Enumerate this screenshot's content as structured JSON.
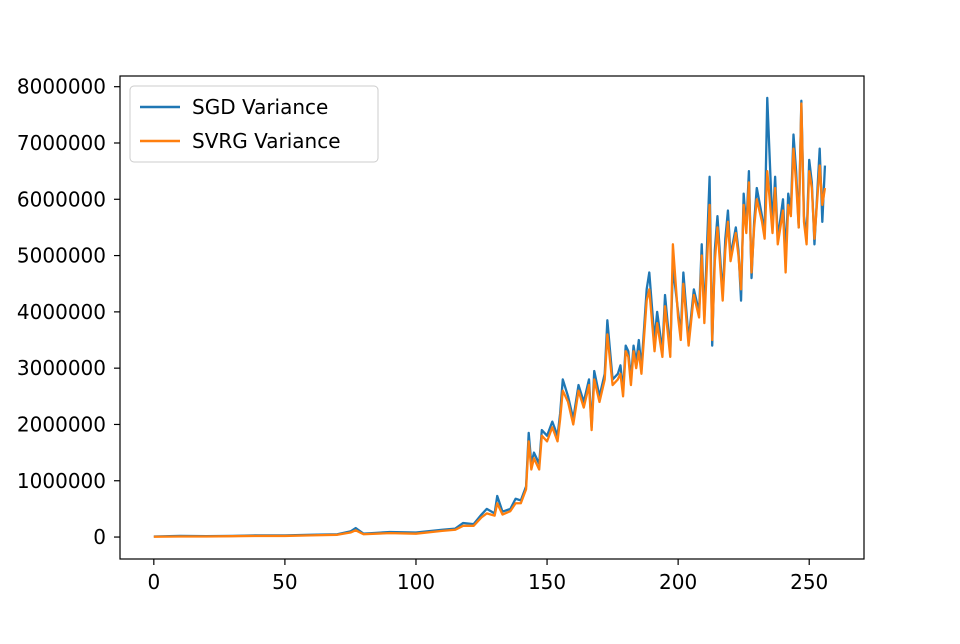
{
  "chart_data": {
    "type": "line",
    "title": "",
    "xlabel": "",
    "ylabel": "",
    "xlim": [
      -12.9,
      270.9
    ],
    "ylim": [
      -390000,
      8190000
    ],
    "xticks": [
      0,
      50,
      100,
      150,
      200,
      250
    ],
    "xtick_labels": [
      "0",
      "50",
      "100",
      "150",
      "200",
      "250"
    ],
    "yticks": [
      0,
      1000000,
      2000000,
      3000000,
      4000000,
      5000000,
      6000000,
      7000000,
      8000000
    ],
    "ytick_labels": [
      "0",
      "1000000",
      "2000000",
      "3000000",
      "4000000",
      "5000000",
      "6000000",
      "7000000",
      "8000000"
    ],
    "grid": false,
    "legend_position": "top-left",
    "series": [
      {
        "name": "SGD Variance",
        "color": "#1f77b4",
        "points": [
          [
            0,
            10000
          ],
          [
            10,
            20000
          ],
          [
            20,
            15000
          ],
          [
            30,
            20000
          ],
          [
            40,
            30000
          ],
          [
            50,
            30000
          ],
          [
            60,
            40000
          ],
          [
            70,
            50000
          ],
          [
            75,
            100000
          ],
          [
            77,
            160000
          ],
          [
            80,
            60000
          ],
          [
            90,
            90000
          ],
          [
            100,
            80000
          ],
          [
            110,
            130000
          ],
          [
            115,
            150000
          ],
          [
            118,
            250000
          ],
          [
            122,
            230000
          ],
          [
            125,
            400000
          ],
          [
            127,
            500000
          ],
          [
            130,
            420000
          ],
          [
            131,
            730000
          ],
          [
            133,
            450000
          ],
          [
            136,
            500000
          ],
          [
            138,
            680000
          ],
          [
            140,
            650000
          ],
          [
            142,
            900000
          ],
          [
            143,
            1850000
          ],
          [
            144,
            1300000
          ],
          [
            145,
            1500000
          ],
          [
            147,
            1300000
          ],
          [
            148,
            1900000
          ],
          [
            150,
            1800000
          ],
          [
            152,
            2050000
          ],
          [
            154,
            1800000
          ],
          [
            155,
            2200000
          ],
          [
            156,
            2800000
          ],
          [
            158,
            2500000
          ],
          [
            160,
            2100000
          ],
          [
            162,
            2700000
          ],
          [
            164,
            2400000
          ],
          [
            166,
            2800000
          ],
          [
            167,
            1950000
          ],
          [
            168,
            2950000
          ],
          [
            170,
            2500000
          ],
          [
            172,
            2900000
          ],
          [
            173,
            3850000
          ],
          [
            175,
            2800000
          ],
          [
            177,
            2900000
          ],
          [
            178,
            3050000
          ],
          [
            179,
            2600000
          ],
          [
            180,
            3400000
          ],
          [
            181,
            3300000
          ],
          [
            182,
            2800000
          ],
          [
            183,
            3400000
          ],
          [
            184,
            3100000
          ],
          [
            185,
            3500000
          ],
          [
            186,
            3000000
          ],
          [
            188,
            4400000
          ],
          [
            189,
            4700000
          ],
          [
            191,
            3500000
          ],
          [
            192,
            4000000
          ],
          [
            194,
            3300000
          ],
          [
            195,
            4300000
          ],
          [
            197,
            3300000
          ],
          [
            198,
            4800000
          ],
          [
            200,
            4000000
          ],
          [
            201,
            3600000
          ],
          [
            202,
            4700000
          ],
          [
            204,
            3500000
          ],
          [
            206,
            4400000
          ],
          [
            208,
            4000000
          ],
          [
            209,
            5200000
          ],
          [
            210,
            3900000
          ],
          [
            212,
            6400000
          ],
          [
            213,
            3400000
          ],
          [
            214,
            5100000
          ],
          [
            215,
            5700000
          ],
          [
            217,
            4300000
          ],
          [
            218,
            5300000
          ],
          [
            219,
            5800000
          ],
          [
            220,
            5000000
          ],
          [
            222,
            5500000
          ],
          [
            223,
            5100000
          ],
          [
            224,
            4200000
          ],
          [
            225,
            6100000
          ],
          [
            226,
            5500000
          ],
          [
            227,
            6500000
          ],
          [
            228,
            4600000
          ],
          [
            229,
            5600000
          ],
          [
            230,
            6200000
          ],
          [
            232,
            5700000
          ],
          [
            233,
            5400000
          ],
          [
            234,
            7800000
          ],
          [
            236,
            5500000
          ],
          [
            237,
            6400000
          ],
          [
            238,
            5300000
          ],
          [
            240,
            6000000
          ],
          [
            241,
            5000000
          ],
          [
            242,
            6100000
          ],
          [
            243,
            5800000
          ],
          [
            244,
            7150000
          ],
          [
            245,
            6500000
          ],
          [
            246,
            5500000
          ],
          [
            247,
            7750000
          ],
          [
            248,
            5700000
          ],
          [
            249,
            5300000
          ],
          [
            250,
            6700000
          ],
          [
            251,
            6300000
          ],
          [
            252,
            5200000
          ],
          [
            254,
            6900000
          ],
          [
            255,
            5600000
          ],
          [
            256,
            6600000
          ]
        ]
      },
      {
        "name": "SVRG Variance",
        "color": "#ff7f0e",
        "points": [
          [
            0,
            5000
          ],
          [
            10,
            10000
          ],
          [
            20,
            10000
          ],
          [
            30,
            15000
          ],
          [
            40,
            20000
          ],
          [
            50,
            20000
          ],
          [
            60,
            30000
          ],
          [
            70,
            40000
          ],
          [
            75,
            80000
          ],
          [
            77,
            120000
          ],
          [
            80,
            50000
          ],
          [
            90,
            70000
          ],
          [
            100,
            60000
          ],
          [
            110,
            110000
          ],
          [
            115,
            130000
          ],
          [
            118,
            200000
          ],
          [
            122,
            200000
          ],
          [
            125,
            350000
          ],
          [
            127,
            420000
          ],
          [
            130,
            380000
          ],
          [
            131,
            600000
          ],
          [
            133,
            400000
          ],
          [
            136,
            460000
          ],
          [
            138,
            600000
          ],
          [
            140,
            600000
          ],
          [
            142,
            850000
          ],
          [
            143,
            1700000
          ],
          [
            144,
            1200000
          ],
          [
            145,
            1400000
          ],
          [
            147,
            1200000
          ],
          [
            148,
            1800000
          ],
          [
            150,
            1700000
          ],
          [
            152,
            1950000
          ],
          [
            154,
            1700000
          ],
          [
            155,
            2100000
          ],
          [
            156,
            2600000
          ],
          [
            158,
            2400000
          ],
          [
            160,
            2000000
          ],
          [
            162,
            2600000
          ],
          [
            164,
            2300000
          ],
          [
            166,
            2700000
          ],
          [
            167,
            1900000
          ],
          [
            168,
            2800000
          ],
          [
            170,
            2400000
          ],
          [
            172,
            2800000
          ],
          [
            173,
            3600000
          ],
          [
            175,
            2700000
          ],
          [
            177,
            2800000
          ],
          [
            178,
            2900000
          ],
          [
            179,
            2500000
          ],
          [
            180,
            3300000
          ],
          [
            181,
            3200000
          ],
          [
            182,
            2700000
          ],
          [
            183,
            3300000
          ],
          [
            184,
            3000000
          ],
          [
            185,
            3300000
          ],
          [
            186,
            2900000
          ],
          [
            188,
            4200000
          ],
          [
            189,
            4400000
          ],
          [
            191,
            3300000
          ],
          [
            192,
            3800000
          ],
          [
            194,
            3200000
          ],
          [
            195,
            4100000
          ],
          [
            197,
            3200000
          ],
          [
            198,
            5200000
          ],
          [
            200,
            3900000
          ],
          [
            201,
            3500000
          ],
          [
            202,
            4500000
          ],
          [
            204,
            3400000
          ],
          [
            206,
            4300000
          ],
          [
            208,
            3900000
          ],
          [
            209,
            5000000
          ],
          [
            210,
            3800000
          ],
          [
            212,
            5900000
          ],
          [
            213,
            3500000
          ],
          [
            214,
            4900000
          ],
          [
            215,
            5500000
          ],
          [
            217,
            4200000
          ],
          [
            218,
            5100000
          ],
          [
            219,
            5600000
          ],
          [
            220,
            4900000
          ],
          [
            222,
            5400000
          ],
          [
            223,
            5000000
          ],
          [
            224,
            4400000
          ],
          [
            225,
            5900000
          ],
          [
            226,
            5400000
          ],
          [
            227,
            6300000
          ],
          [
            228,
            4700000
          ],
          [
            229,
            5500000
          ],
          [
            230,
            6000000
          ],
          [
            232,
            5600000
          ],
          [
            233,
            5300000
          ],
          [
            234,
            6500000
          ],
          [
            236,
            5400000
          ],
          [
            237,
            6200000
          ],
          [
            238,
            5200000
          ],
          [
            240,
            5800000
          ],
          [
            241,
            4700000
          ],
          [
            242,
            5900000
          ],
          [
            243,
            5700000
          ],
          [
            244,
            6900000
          ],
          [
            245,
            6300000
          ],
          [
            246,
            5500000
          ],
          [
            247,
            7700000
          ],
          [
            248,
            5600000
          ],
          [
            249,
            5200000
          ],
          [
            250,
            6500000
          ],
          [
            251,
            6200000
          ],
          [
            252,
            5300000
          ],
          [
            254,
            6600000
          ],
          [
            255,
            5900000
          ],
          [
            256,
            6200000
          ]
        ]
      }
    ]
  }
}
